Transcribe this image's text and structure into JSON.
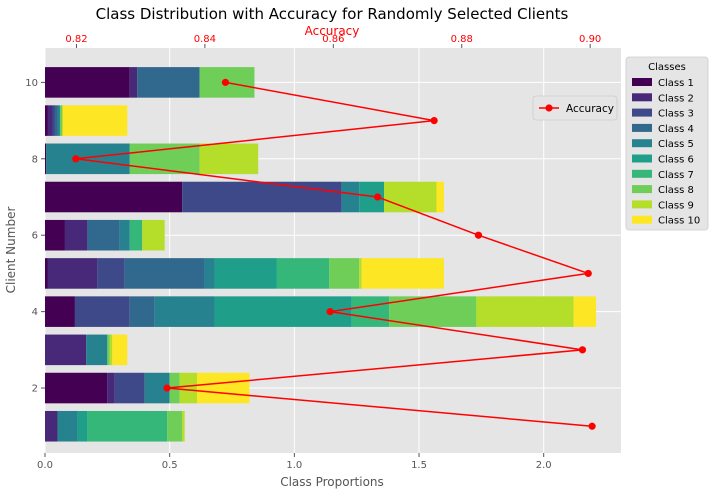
{
  "chart_data": {
    "type": "bar",
    "orientation": "horizontal",
    "stacked": true,
    "title": "Class Distribution with Accuracy for Randomly Selected Clients",
    "xlabel": "Class Proportions",
    "ylabel": "Client Number",
    "xlim": [
      0,
      2.31
    ],
    "xticks": [
      0.0,
      0.5,
      1.0,
      1.5,
      2.0
    ],
    "xtick_labels": [
      "0.0",
      "0.5",
      "1.0",
      "1.5",
      "2.0"
    ],
    "ylim": [
      0.3,
      10.9
    ],
    "yticks": [
      2,
      4,
      6,
      8,
      10
    ],
    "ytick_labels": [
      "2",
      "4",
      "6",
      "8",
      "10"
    ],
    "categories": [
      1,
      2,
      3,
      4,
      5,
      6,
      7,
      8,
      9,
      10
    ],
    "grid": true,
    "legend": {
      "title": "Classes",
      "placement": "outside-right"
    },
    "series": [
      {
        "name": "Class 1",
        "color": "#440154",
        "values": [
          0.0,
          0.25,
          0.0,
          0.12,
          0.01,
          0.08,
          0.55,
          0.005,
          0.01,
          0.34
        ]
      },
      {
        "name": "Class 2",
        "color": "#482878",
        "values": [
          0.05,
          0.03,
          0.165,
          0.0,
          0.2,
          0.09,
          0.0,
          0.0,
          0.02,
          0.03
        ]
      },
      {
        "name": "Class 3",
        "color": "#3e4989",
        "values": [
          0.0,
          0.12,
          0.0,
          0.22,
          0.11,
          0.0,
          0.64,
          0.0,
          0.01,
          0.0
        ]
      },
      {
        "name": "Class 4",
        "color": "#31688e",
        "values": [
          0.0,
          0.0,
          0.0,
          0.1,
          0.32,
          0.13,
          0.0,
          0.0,
          0.01,
          0.25
        ]
      },
      {
        "name": "Class 5",
        "color": "#26828e",
        "values": [
          0.08,
          0.1,
          0.085,
          0.24,
          0.04,
          0.04,
          0.07,
          0.335,
          0.01,
          0.0
        ]
      },
      {
        "name": "Class 6",
        "color": "#1f9e89",
        "values": [
          0.04,
          0.0,
          0.0,
          0.55,
          0.25,
          0.0,
          0.1,
          0.0,
          0.0,
          0.0
        ]
      },
      {
        "name": "Class 7",
        "color": "#35b779",
        "values": [
          0.32,
          0.0,
          0.0,
          0.15,
          0.21,
          0.05,
          0.0,
          0.0,
          0.0,
          0.0
        ]
      },
      {
        "name": "Class 8",
        "color": "#6ece58",
        "values": [
          0.06,
          0.04,
          0.01,
          0.35,
          0.12,
          0.0,
          0.0,
          0.28,
          0.01,
          0.22
        ]
      },
      {
        "name": "Class 9",
        "color": "#b5de2b",
        "values": [
          0.01,
          0.07,
          0.01,
          0.39,
          0.01,
          0.09,
          0.21,
          0.235,
          0.0,
          0.0
        ]
      },
      {
        "name": "Class 10",
        "color": "#fde725",
        "values": [
          0.0,
          0.21,
          0.06,
          0.09,
          0.33,
          0.0,
          0.03,
          0.0,
          0.26,
          0.0
        ]
      }
    ],
    "accuracy": {
      "name": "Accuracy",
      "color": "#ff0000",
      "axis_label": "Accuracy",
      "xlim": [
        0.8151,
        0.9048
      ],
      "xticks": [
        0.82,
        0.84,
        0.86,
        0.88,
        0.9
      ],
      "xtick_labels": [
        "0.82",
        "0.84",
        "0.86",
        "0.88",
        "0.90"
      ],
      "values": [
        0.9003,
        0.8341,
        0.8988,
        0.8595,
        0.8997,
        0.8826,
        0.8669,
        0.8199,
        0.8757,
        0.8432
      ]
    }
  }
}
